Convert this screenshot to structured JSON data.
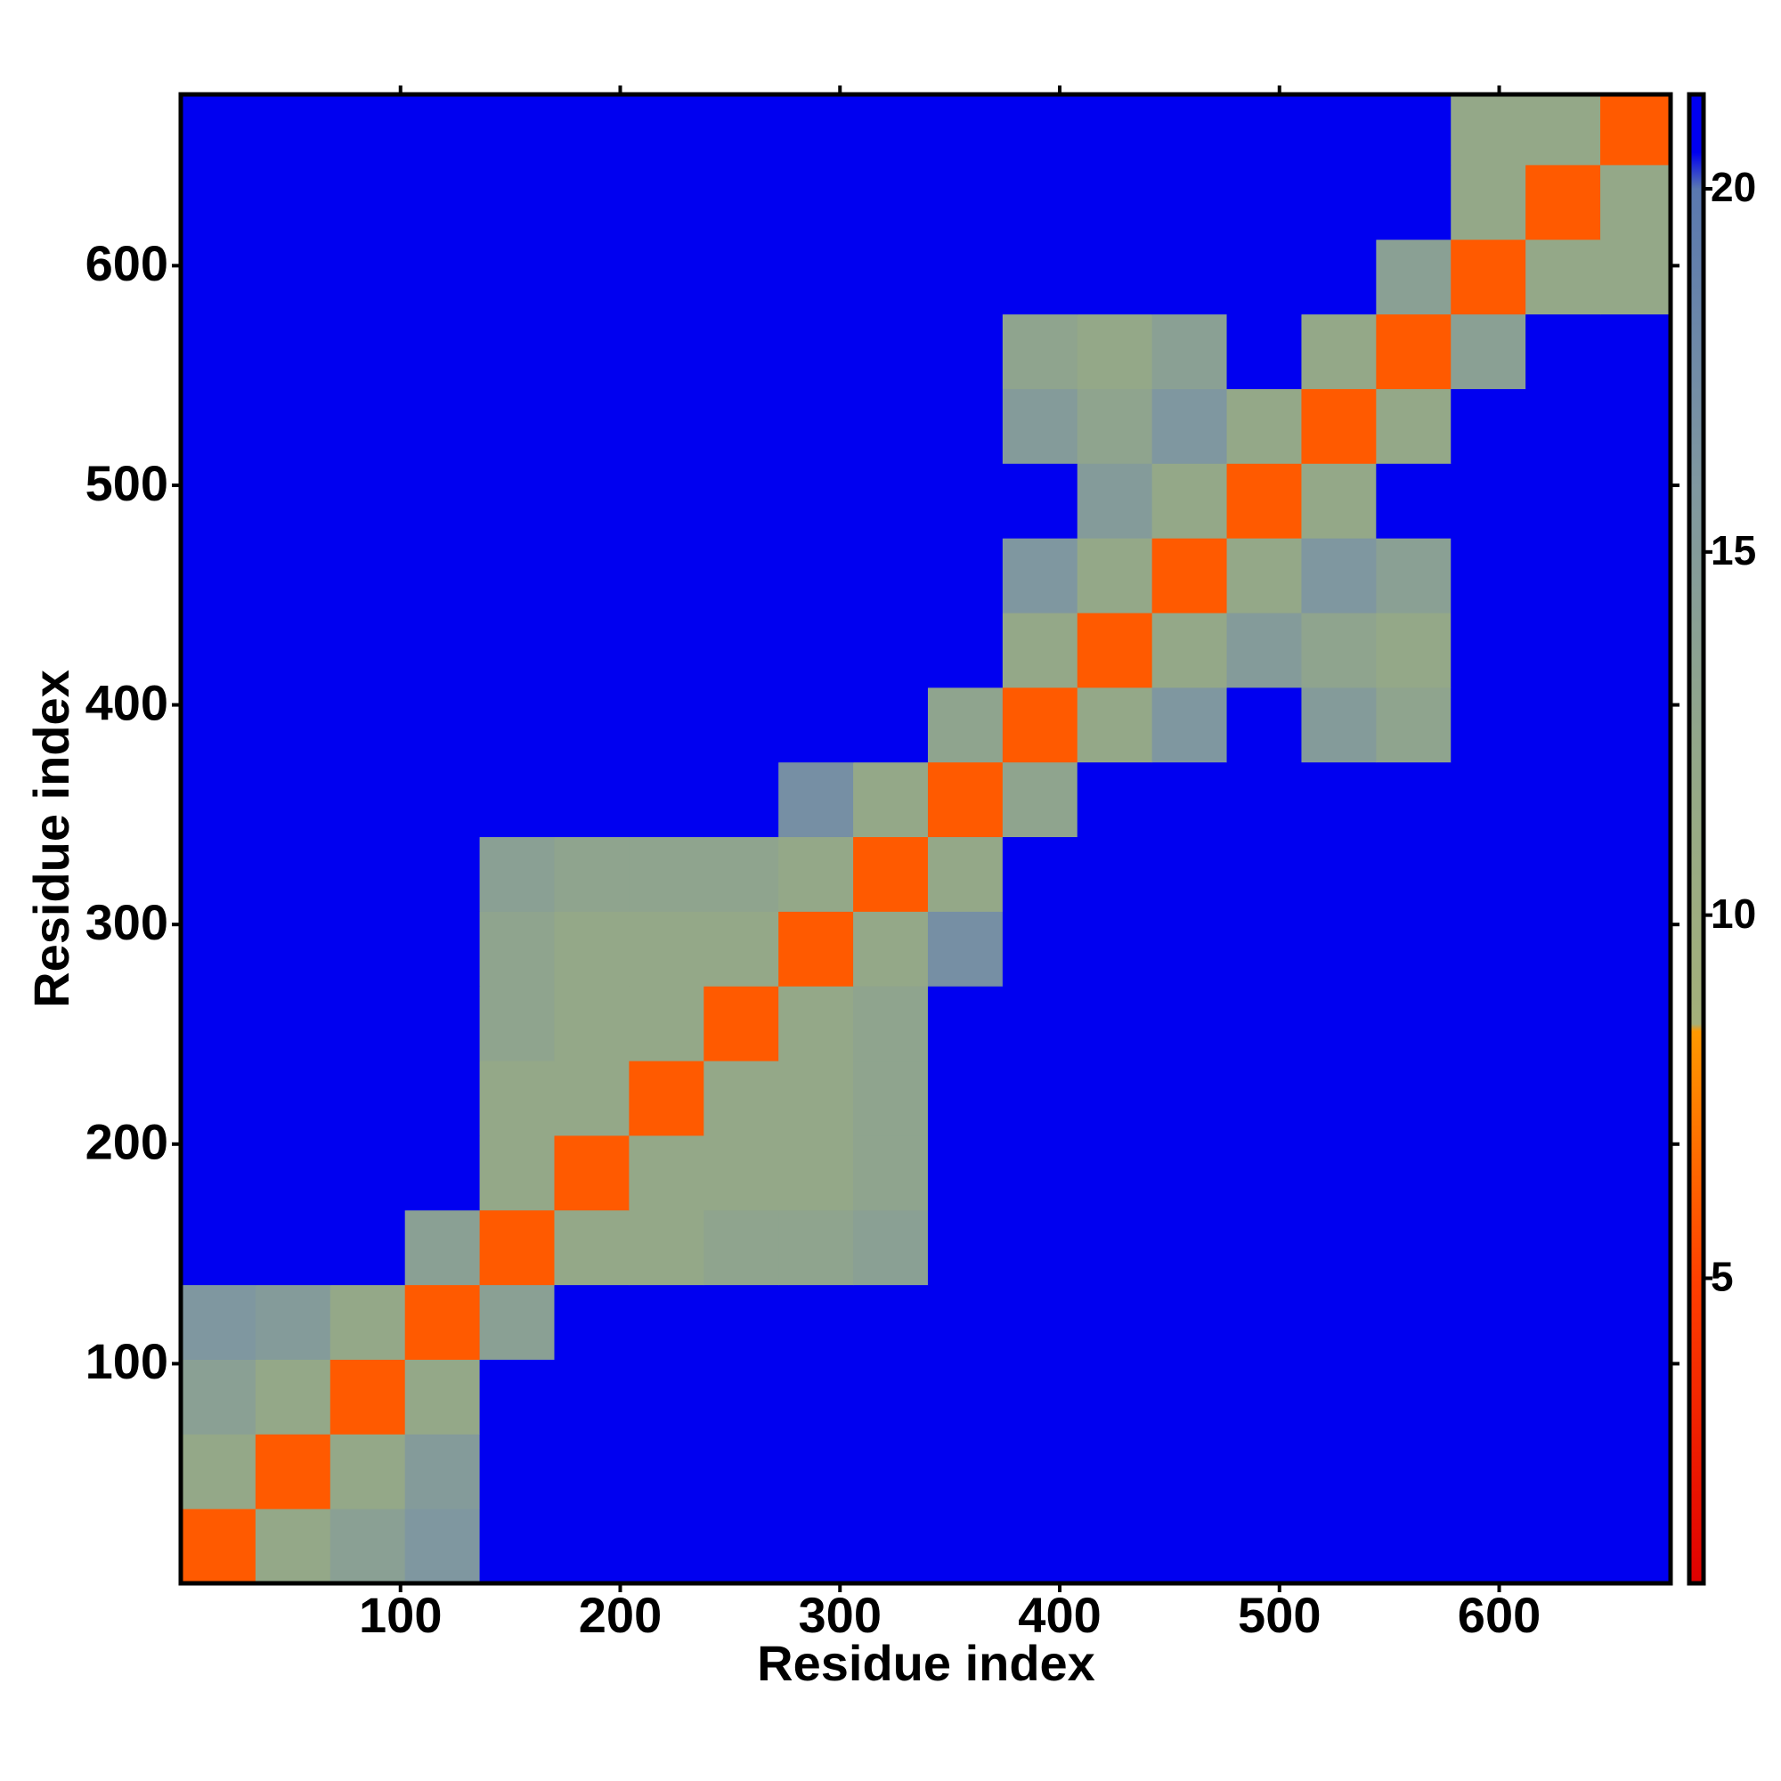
{
  "chart_data": {
    "type": "heatmap",
    "xlabel": "Residue index",
    "ylabel": "Residue index",
    "x_bins": [
      0,
      34,
      68,
      102,
      136,
      170,
      204,
      238,
      272,
      306,
      340,
      374,
      408,
      442,
      476,
      510,
      544,
      578,
      612,
      646,
      678
    ],
    "y_bins": [
      0,
      34,
      68,
      102,
      136,
      170,
      204,
      238,
      272,
      306,
      340,
      374,
      408,
      442,
      476,
      510,
      544,
      578,
      612,
      646,
      678
    ],
    "z": [
      [
        6,
        12,
        14,
        16,
        21,
        21,
        21,
        21,
        21,
        21,
        21,
        21,
        21,
        21,
        21,
        21,
        21,
        21,
        21,
        21
      ],
      [
        12,
        6,
        12,
        15,
        21,
        21,
        21,
        21,
        21,
        21,
        21,
        21,
        21,
        21,
        21,
        21,
        21,
        21,
        21,
        21
      ],
      [
        14,
        12,
        6,
        12,
        21,
        21,
        21,
        21,
        21,
        21,
        21,
        21,
        21,
        21,
        21,
        21,
        21,
        21,
        21,
        21
      ],
      [
        16,
        15,
        12,
        6,
        14,
        21,
        21,
        21,
        21,
        21,
        21,
        21,
        21,
        21,
        21,
        21,
        21,
        21,
        21,
        21
      ],
      [
        21,
        21,
        21,
        14,
        6,
        12,
        12,
        13,
        13,
        14,
        21,
        21,
        21,
        21,
        21,
        21,
        21,
        21,
        21,
        21
      ],
      [
        21,
        21,
        21,
        21,
        12,
        6,
        12,
        12,
        12,
        13,
        21,
        21,
        21,
        21,
        21,
        21,
        21,
        21,
        21,
        21
      ],
      [
        21,
        21,
        21,
        21,
        12,
        12,
        6,
        12,
        12,
        13,
        21,
        21,
        21,
        21,
        21,
        21,
        21,
        21,
        21,
        21
      ],
      [
        21,
        21,
        21,
        21,
        13,
        12,
        12,
        6,
        12,
        13,
        21,
        21,
        21,
        21,
        21,
        21,
        21,
        21,
        21,
        21
      ],
      [
        21,
        21,
        21,
        21,
        13,
        12,
        12,
        12,
        6,
        12,
        17,
        21,
        21,
        21,
        21,
        21,
        21,
        21,
        21,
        21
      ],
      [
        21,
        21,
        21,
        21,
        14,
        13,
        13,
        13,
        12,
        6,
        12,
        21,
        21,
        21,
        21,
        21,
        21,
        21,
        21,
        21
      ],
      [
        21,
        21,
        21,
        21,
        21,
        21,
        21,
        21,
        17,
        12,
        6,
        13,
        21,
        21,
        21,
        21,
        21,
        21,
        21,
        21
      ],
      [
        21,
        21,
        21,
        21,
        21,
        21,
        21,
        21,
        21,
        21,
        13,
        6,
        12,
        16,
        21,
        15,
        13,
        21,
        21,
        21
      ],
      [
        21,
        21,
        21,
        21,
        21,
        21,
        21,
        21,
        21,
        21,
        21,
        12,
        6,
        12,
        15,
        13,
        12,
        21,
        21,
        21
      ],
      [
        21,
        21,
        21,
        21,
        21,
        21,
        21,
        21,
        21,
        21,
        21,
        16,
        12,
        6,
        12,
        16,
        14,
        21,
        21,
        21
      ],
      [
        21,
        21,
        21,
        21,
        21,
        21,
        21,
        21,
        21,
        21,
        21,
        21,
        15,
        12,
        6,
        12,
        21,
        21,
        21,
        21
      ],
      [
        21,
        21,
        21,
        21,
        21,
        21,
        21,
        21,
        21,
        21,
        21,
        15,
        13,
        16,
        12,
        6,
        12,
        21,
        21,
        21
      ],
      [
        21,
        21,
        21,
        21,
        21,
        21,
        21,
        21,
        21,
        21,
        21,
        13,
        12,
        14,
        21,
        12,
        6,
        14,
        21,
        21
      ],
      [
        21,
        21,
        21,
        21,
        21,
        21,
        21,
        21,
        21,
        21,
        21,
        21,
        21,
        21,
        21,
        21,
        14,
        6,
        12,
        12
      ],
      [
        21,
        21,
        21,
        21,
        21,
        21,
        21,
        21,
        21,
        21,
        21,
        21,
        21,
        21,
        21,
        21,
        21,
        12,
        6,
        12
      ],
      [
        21,
        21,
        21,
        21,
        21,
        21,
        21,
        21,
        21,
        21,
        21,
        21,
        21,
        21,
        21,
        21,
        21,
        12,
        12,
        6
      ]
    ],
    "xlim": [
      0,
      678
    ],
    "ylim": [
      0,
      678
    ],
    "xticks": [
      100,
      200,
      300,
      400,
      500,
      600
    ],
    "yticks": [
      100,
      200,
      300,
      400,
      500,
      600
    ],
    "colorbar": {
      "lim": [
        0.8,
        21.3
      ],
      "ticks": [
        5,
        10,
        15,
        20
      ]
    },
    "colorscale": [
      {
        "value": 0.8,
        "color": "#e00000"
      },
      {
        "value": 5,
        "color": "#ff4000"
      },
      {
        "value": 8.4,
        "color": "#ff9900"
      },
      {
        "value": 8.5,
        "color": "#a4b07a"
      },
      {
        "value": 12,
        "color": "#94a888"
      },
      {
        "value": 16,
        "color": "#7f97a0"
      },
      {
        "value": 20,
        "color": "#5a78b0"
      },
      {
        "value": 20.5,
        "color": "#0000f0"
      },
      {
        "value": 21.3,
        "color": "#0000f0"
      }
    ]
  }
}
